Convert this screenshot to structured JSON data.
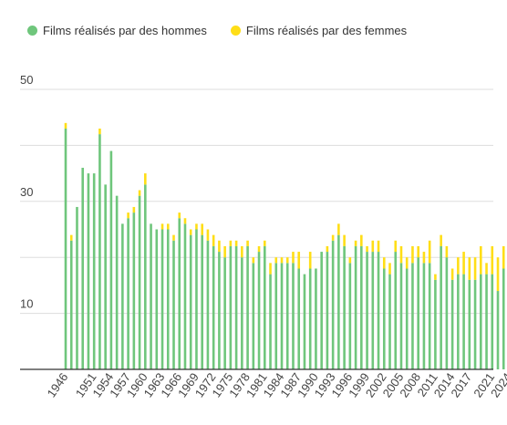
{
  "colors": {
    "hommes": "#6fc67c",
    "femmes": "#ffde17",
    "grid": "#dddddd",
    "axis": "#333333",
    "text": "#444444"
  },
  "legend": {
    "hommes_label": "Films réalisés par des hommes",
    "femmes_label": "Films réalisés par des femmes"
  },
  "chart_data": {
    "type": "bar",
    "stacked": true,
    "ylim": [
      0,
      52
    ],
    "yticks": [
      10,
      30,
      50
    ],
    "grid": true,
    "legend_position": "top-left",
    "x_labels_shown": [
      "1946",
      "1951",
      "1954",
      "1957",
      "1960",
      "1963",
      "1966",
      "1969",
      "1972",
      "1975",
      "1978",
      "1981",
      "1984",
      "1987",
      "1990",
      "1993",
      "1996",
      "1999",
      "2002",
      "2005",
      "2008",
      "2011",
      "2014",
      "2017",
      "2021",
      "2024"
    ],
    "categories": [
      "1946",
      "1947",
      "1948",
      "1949",
      "1950",
      "1951",
      "1952",
      "1953",
      "1954",
      "1955",
      "1956",
      "1957",
      "1958",
      "1959",
      "1960",
      "1961",
      "1962",
      "1963",
      "1964",
      "1965",
      "1966",
      "1967",
      "1968",
      "1969",
      "1970",
      "1971",
      "1972",
      "1973",
      "1974",
      "1975",
      "1976",
      "1977",
      "1978",
      "1979",
      "1980",
      "1981",
      "1982",
      "1983",
      "1984",
      "1985",
      "1986",
      "1987",
      "1988",
      "1989",
      "1990",
      "1991",
      "1992",
      "1993",
      "1994",
      "1995",
      "1996",
      "1997",
      "1998",
      "1999",
      "2000",
      "2001",
      "2002",
      "2003",
      "2004",
      "2005",
      "2006",
      "2007",
      "2008",
      "2009",
      "2010",
      "2011",
      "2012",
      "2013",
      "2014",
      "2015",
      "2016",
      "2017",
      "2018",
      "2019",
      "2020",
      "2021",
      "2022",
      "2023",
      "2024"
    ],
    "series": [
      {
        "name": "Films réalisés par des hommes",
        "values": [
          43,
          23,
          29,
          36,
          35,
          35,
          42,
          33,
          39,
          31,
          26,
          27,
          28,
          31,
          33,
          26,
          25,
          25,
          25,
          23,
          27,
          26,
          24,
          25,
          24,
          23,
          22,
          21,
          20,
          22,
          22,
          20,
          22,
          19,
          21,
          22,
          17,
          19,
          19,
          19,
          19,
          18,
          17,
          18,
          18,
          21,
          21,
          23,
          24,
          22,
          19,
          22,
          22,
          21,
          21,
          21,
          18,
          17,
          21,
          19,
          18,
          19,
          20,
          19,
          19,
          16,
          22,
          20,
          16,
          17,
          17,
          16,
          16,
          17,
          17,
          17,
          14,
          18,
          18
        ]
      },
      {
        "name": "Films réalisés par des femmes",
        "values": [
          1,
          1,
          0,
          0,
          0,
          0,
          1,
          0,
          0,
          0,
          0,
          1,
          1,
          1,
          2,
          0,
          0,
          1,
          1,
          1,
          1,
          1,
          1,
          1,
          2,
          2,
          2,
          2,
          2,
          1,
          1,
          2,
          1,
          1,
          1,
          1,
          2,
          1,
          1,
          1,
          2,
          3,
          0,
          3,
          0,
          0,
          1,
          1,
          2,
          2,
          1,
          1,
          2,
          1,
          2,
          2,
          2,
          2,
          2,
          3,
          2,
          3,
          2,
          2,
          4,
          1,
          2,
          2,
          2,
          3,
          4,
          4,
          4,
          5,
          2,
          5,
          6,
          4,
          5
        ]
      }
    ]
  }
}
